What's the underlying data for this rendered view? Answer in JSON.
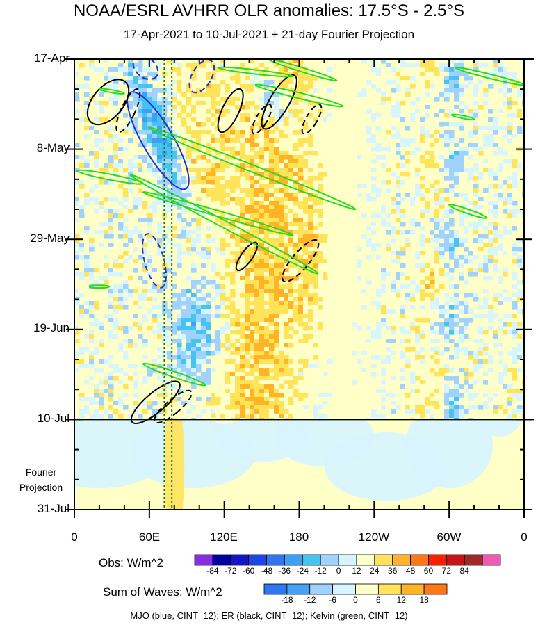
{
  "title": "NOAA/ESRL AVHRR OLR anomalies: 17.5°S - 2.5°S",
  "subtitle": "17-Apr-2021 to 10-Jul-2021 + 21-day Fourier Projection",
  "projection_note": [
    "Fourier",
    "Projection"
  ],
  "footer": "MJO (blue, CINT=12); ER (black, CINT=12); Kelvin (green, CINT=12)",
  "colors": {
    "mjo": "#1f2fd6",
    "er": "#000000",
    "kelvin": "#22dd22",
    "projection_line": "#1b7a1b"
  },
  "chart_data": {
    "type": "heatmap",
    "xlabel": "",
    "ylabel": "",
    "x_ticks": [
      "0",
      "60E",
      "120E",
      "180",
      "120W",
      "60W",
      "0"
    ],
    "y_ticks": [
      "17-Apr",
      "8-May",
      "29-May",
      "19-Jun",
      "10-Jul",
      "31-Jul"
    ],
    "x_range": [
      0,
      360
    ],
    "y_range": [
      "17-Apr-2021",
      "31-Jul-2021"
    ],
    "observation_end": "10-Jul-2021",
    "reference_longitudes": [
      72,
      78
    ],
    "obs_colorbar": {
      "label": "Obs: W/m^2",
      "ticks": [
        "-84",
        "-72",
        "-60",
        "-48",
        "-36",
        "-24",
        "-12",
        "0",
        "12",
        "24",
        "36",
        "48",
        "60",
        "72",
        "84"
      ],
      "colors": [
        "#8a2be2",
        "#0000a0",
        "#1414c8",
        "#1e46e6",
        "#2d78f0",
        "#3ca0f5",
        "#46c3f0",
        "#a0d2ff",
        "#d7f5ff",
        "#ffffc8",
        "#ffe45a",
        "#ffb428",
        "#ff7814",
        "#ff1e00",
        "#c81414",
        "#a02828",
        "#f05ab4"
      ]
    },
    "waves_colorbar": {
      "label": "Sum of Waves: W/m^2",
      "ticks": [
        "-18",
        "-12",
        "-6",
        "0",
        "6",
        "12",
        "18"
      ],
      "colors": [
        "#2d78f0",
        "#46a0f5",
        "#a0d2ff",
        "#d7f5ff",
        "#ffffc8",
        "#ffe45a",
        "#ffb428",
        "#ff7814"
      ]
    },
    "series": [
      {
        "name": "MJO (blue, CINT=12)"
      },
      {
        "name": "ER (black, CINT=12)"
      },
      {
        "name": "Kelvin (green, CINT=12)"
      }
    ]
  }
}
